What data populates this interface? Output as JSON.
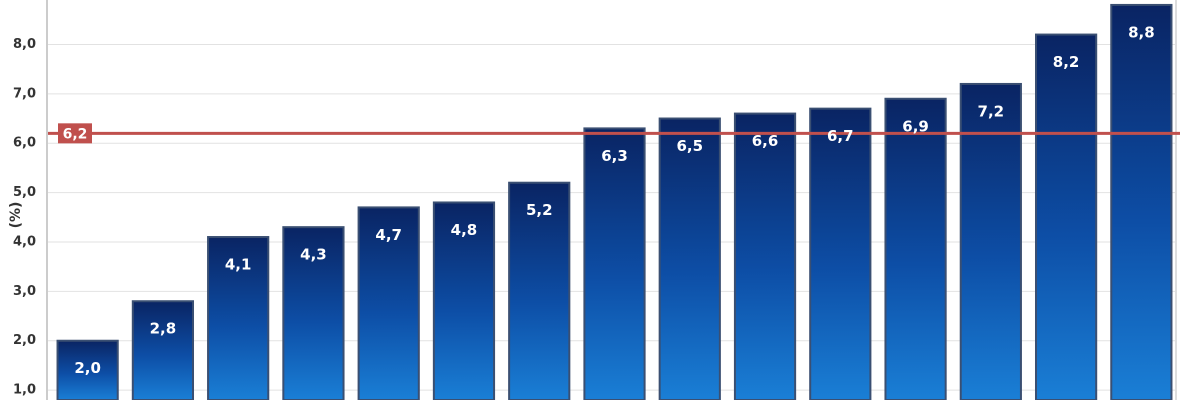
{
  "chart_data": {
    "type": "bar",
    "y_label": "(%)",
    "categories": [
      null,
      null,
      null,
      null,
      null,
      null,
      null,
      null,
      null,
      null,
      null,
      null,
      null,
      null,
      null
    ],
    "values": [
      2.0,
      2.8,
      4.1,
      4.3,
      4.7,
      4.8,
      5.2,
      6.3,
      6.5,
      6.6,
      6.7,
      6.9,
      7.2,
      8.2,
      8.8
    ],
    "value_labels": [
      "2,0",
      "2,8",
      "4,1",
      "4,3",
      "4,7",
      "4,8",
      "5,2",
      "6,3",
      "6,5",
      "6,6",
      "6,7",
      "6,9",
      "7,2",
      "8,2",
      "8,8"
    ],
    "color": "#0f4fa8",
    "ylim": [
      0.8,
      8.9
    ],
    "yticks": [
      {
        "value": 1,
        "label": "1,0"
      },
      {
        "value": 2,
        "label": "2,0"
      },
      {
        "value": 3,
        "label": "3,0"
      },
      {
        "value": 4,
        "label": "4,0"
      },
      {
        "value": 5,
        "label": "5,0"
      },
      {
        "value": 6,
        "label": "6,0"
      },
      {
        "value": 7,
        "label": "7,0"
      },
      {
        "value": 8,
        "label": "8,0"
      }
    ],
    "grid": true,
    "reference_line": {
      "value": 6.2,
      "label": "6,2",
      "color": "#c0504d"
    }
  }
}
